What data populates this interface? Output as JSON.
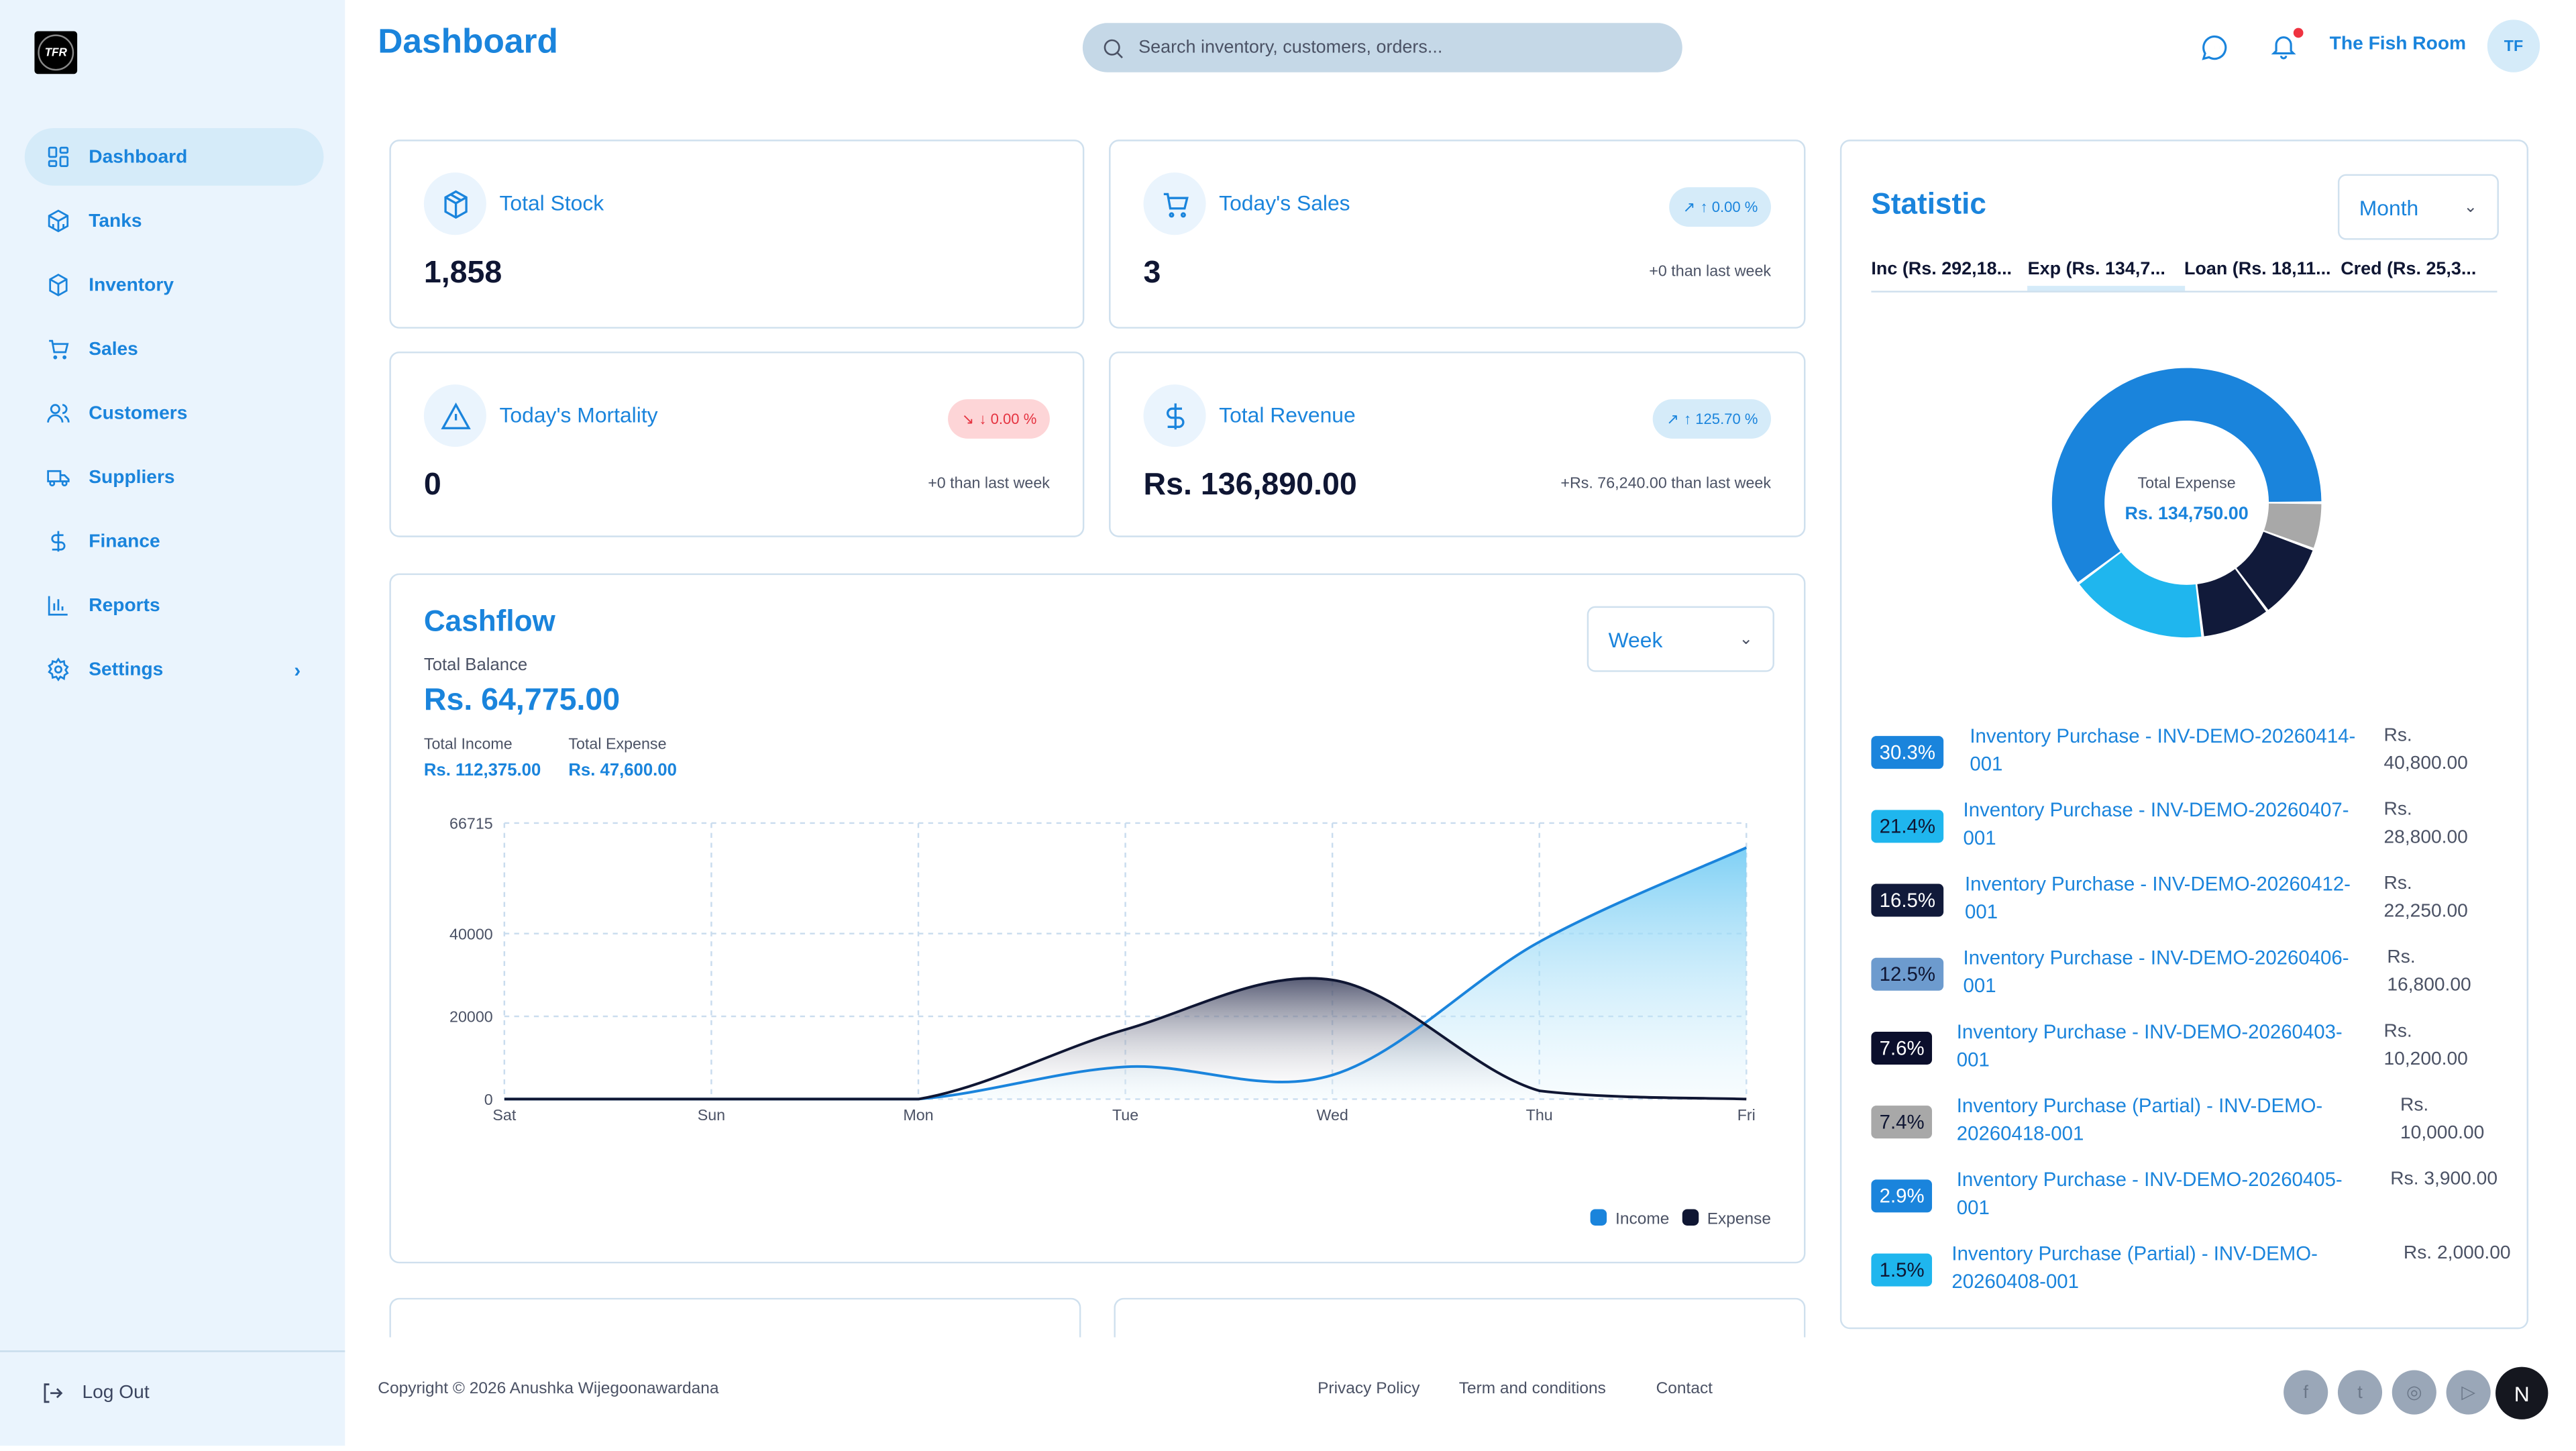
{
  "app": {
    "logo_text": "TFR",
    "page_title": "Dashboard"
  },
  "sidebar": {
    "items": [
      {
        "label": "Dashboard",
        "icon": "grid-icon",
        "active": true
      },
      {
        "label": "Tanks",
        "icon": "tank-icon"
      },
      {
        "label": "Inventory",
        "icon": "box-icon"
      },
      {
        "label": "Sales",
        "icon": "cart-icon"
      },
      {
        "label": "Customers",
        "icon": "users-icon"
      },
      {
        "label": "Suppliers",
        "icon": "truck-icon"
      },
      {
        "label": "Finance",
        "icon": "dollar-icon"
      },
      {
        "label": "Reports",
        "icon": "bar-chart-icon"
      },
      {
        "label": "Settings",
        "icon": "gear-icon",
        "chevron": "›"
      }
    ],
    "logout": "Log Out"
  },
  "header": {
    "search_placeholder": "Search inventory, customers, orders...",
    "user_name": "The Fish Room",
    "avatar_initials": "TF",
    "notification_dot": true
  },
  "kpis": {
    "total_stock": {
      "label": "Total Stock",
      "value": "1,858"
    },
    "todays_sales": {
      "label": "Today's Sales",
      "value": "3",
      "badge": "↑ 0.00 %",
      "sub": "+0 than last week"
    },
    "mortality": {
      "label": "Today's Mortality",
      "value": "0",
      "badge": "↓ 0.00 %",
      "sub": "+0 than last week"
    },
    "revenue": {
      "label": "Total Revenue",
      "value": "Rs. 136,890.00",
      "badge": "↑ 125.70 %",
      "sub": "+Rs. 76,240.00 than last week"
    }
  },
  "cashflow": {
    "title": "Cashflow",
    "period": "Week",
    "balance_label": "Total Balance",
    "balance": "Rs. 64,775.00",
    "income_label": "Total Income",
    "income": "Rs. 112,375.00",
    "expense_label": "Total Expense",
    "expense": "Rs. 47,600.00"
  },
  "chart_data": {
    "type": "area",
    "categories": [
      "Sat",
      "Sun",
      "Mon",
      "Tue",
      "Wed",
      "Thu",
      "Fri"
    ],
    "yticks": [
      0,
      20000,
      40000,
      66715
    ],
    "ylim": [
      0,
      66715
    ],
    "grid": true,
    "legend_position": "bottom-right",
    "series": [
      {
        "name": "Income",
        "color": "#1a84dc",
        "values": [
          0,
          0,
          0,
          7800,
          5800,
          38000,
          60775
        ]
      },
      {
        "name": "Expense",
        "color": "#0f1633",
        "values": [
          0,
          0,
          0,
          16800,
          28800,
          2000,
          0
        ]
      }
    ]
  },
  "statistic": {
    "title": "Statistic",
    "period": "Month",
    "tabs": [
      "Inc (Rs. 292,18...",
      "Exp (Rs. 134,7...",
      "Loan (Rs. 18,11...",
      "Cred (Rs. 25,3..."
    ],
    "active_tab": 1,
    "donut_label": "Total Expense",
    "donut_value": "Rs. 134,750.00",
    "donut_slices": [
      {
        "percent": 5.6,
        "color": "#a8a8a8"
      },
      {
        "percent": 9.2,
        "color": "#111a3a"
      },
      {
        "percent": 8.3,
        "color": "#111a3a"
      },
      {
        "percent": 16.7,
        "color": "#1fb6ee"
      },
      {
        "percent": 60.2,
        "color": "#1a84dc"
      }
    ],
    "items": [
      {
        "pct": "30.3%",
        "name": "Inventory Purchase - INV-DEMO-20260414-001",
        "amount": "Rs. 40,800.00",
        "color": "#1a84dc",
        "text": "#fff"
      },
      {
        "pct": "21.4%",
        "name": "Inventory Purchase - INV-DEMO-20260407-001",
        "amount": "Rs. 28,800.00",
        "color": "#1fb6ee",
        "text": "#0f1633"
      },
      {
        "pct": "16.5%",
        "name": "Inventory Purchase - INV-DEMO-20260412-001",
        "amount": "Rs. 22,250.00",
        "color": "#111a3a",
        "text": "#fff"
      },
      {
        "pct": "12.5%",
        "name": "Inventory Purchase - INV-DEMO-20260406-001",
        "amount": "Rs. 16,800.00",
        "color": "#6d9bce",
        "text": "#0f1633"
      },
      {
        "pct": "7.6%",
        "name": "Inventory Purchase - INV-DEMO-20260403-001",
        "amount": "Rs. 10,200.00",
        "color": "#0b0f2c",
        "text": "#fff"
      },
      {
        "pct": "7.4%",
        "name": "Inventory Purchase (Partial) - INV-DEMO-20260418-001",
        "amount": "Rs. 10,000.00",
        "color": "#a8a8a8",
        "text": "#0f1633"
      },
      {
        "pct": "2.9%",
        "name": "Inventory Purchase - INV-DEMO-20260405-001",
        "amount": "Rs. 3,900.00",
        "color": "#1a84dc",
        "text": "#fff"
      },
      {
        "pct": "1.5%",
        "name": "Inventory Purchase (Partial) - INV-DEMO-20260408-001",
        "amount": "Rs. 2,000.00",
        "color": "#1fb6ee",
        "text": "#0f1633"
      }
    ]
  },
  "footer": {
    "copyright": "Copyright © 2026 Anushka Wijegoonawardana",
    "links": [
      "Privacy Policy",
      "Term and conditions",
      "Contact"
    ],
    "social": [
      "facebook-icon",
      "twitter-icon",
      "instagram-icon",
      "youtube-icon"
    ],
    "corner_badge": "N"
  }
}
